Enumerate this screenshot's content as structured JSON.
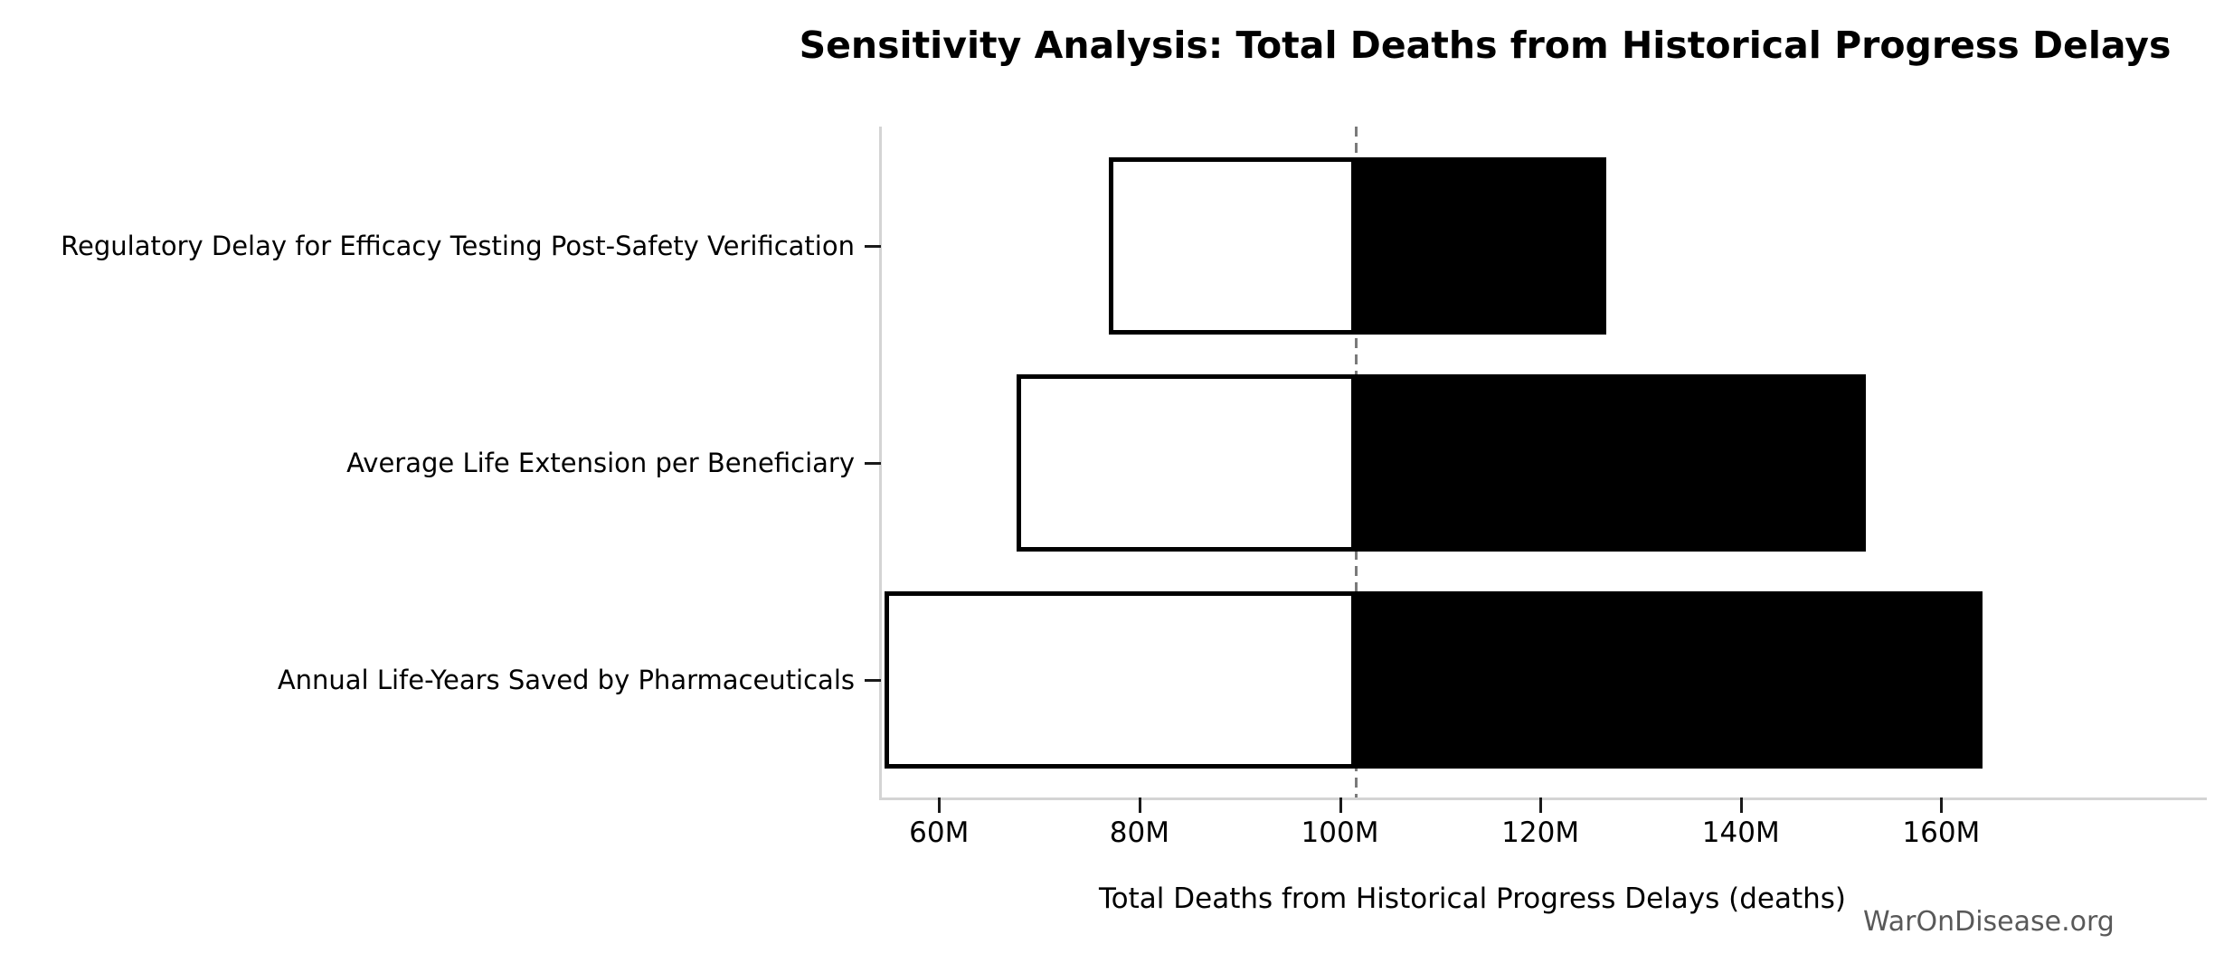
{
  "watermark": "WarOnDisease.org",
  "chart_data": {
    "type": "bar",
    "subtype": "tornado-sensitivity",
    "title": "Sensitivity Analysis: Total Deaths from Historical Progress Delays",
    "xlabel": "Total Deaths from Historical Progress Delays (deaths)",
    "ylabel": "",
    "value_unit": "millions of deaths",
    "xlim": [
      54.2,
      186.5
    ],
    "baseline_value": 101.6,
    "x_ticks": [
      {
        "value": 60,
        "label": "60M"
      },
      {
        "value": 80,
        "label": "80M"
      },
      {
        "value": 100,
        "label": "100M"
      },
      {
        "value": 120,
        "label": "120M"
      },
      {
        "value": 140,
        "label": "140M"
      },
      {
        "value": 160,
        "label": "160M"
      }
    ],
    "rows": [
      {
        "label": "Regulatory Delay for Efficacy Testing Post-Safety Verification",
        "low": 76.9,
        "high": 126.6
      },
      {
        "label": "Average Life Extension per Beneficiary",
        "low": 67.7,
        "high": 152.5
      },
      {
        "label": "Annual Life-Years Saved by Pharmaceuticals",
        "low": 54.6,
        "high": 164.1
      }
    ],
    "grid": false,
    "legend": "none",
    "colors": {
      "low_fill": "#ffffff",
      "high_fill": "#000000",
      "bar_edge": "#000000",
      "baseline_line": "#7a7a7a",
      "spine": "#d4d4d4",
      "tick": "#1a1a1a",
      "text": "#000000",
      "watermark": "#595959"
    }
  }
}
